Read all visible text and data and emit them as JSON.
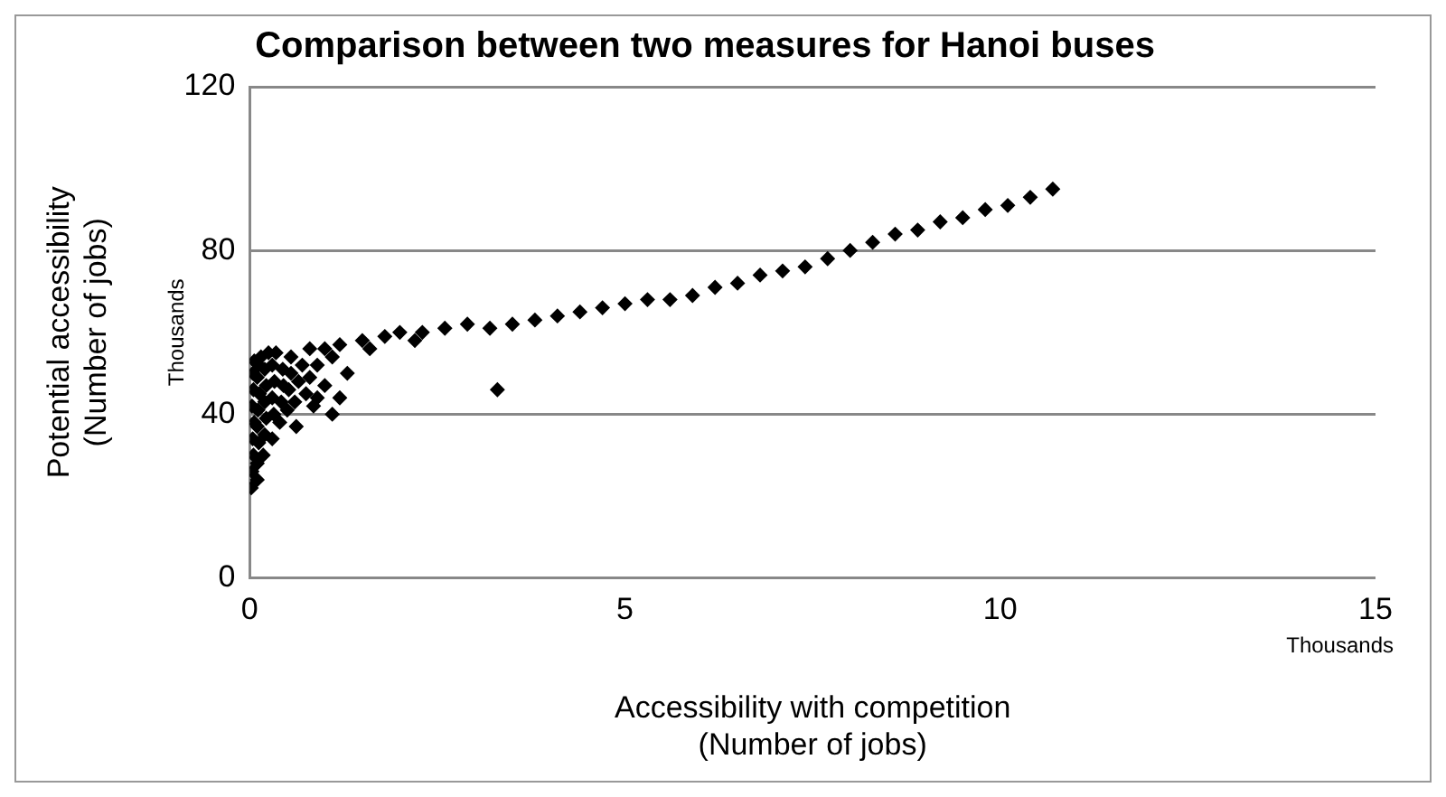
{
  "chart_data": {
    "type": "scatter",
    "title": "Comparison between two measures for Hanoi buses",
    "xlabel": "Accessibility with competition\n(Number of jobs)",
    "ylabel": "Potential accessibility\n(Number of jobs)",
    "annotations": [
      "Thousands",
      "Thousands"
    ],
    "x": [
      0.02,
      0.03,
      0.05,
      0.04,
      0.06,
      0.03,
      0.05,
      0.04,
      0.06,
      0.1,
      0.1,
      0.12,
      0.1,
      0.11,
      0.13,
      0.1,
      0.12,
      0.15,
      0.18,
      0.2,
      0.22,
      0.2,
      0.22,
      0.2,
      0.25,
      0.3,
      0.32,
      0.3,
      0.33,
      0.3,
      0.35,
      0.4,
      0.42,
      0.45,
      0.44,
      0.5,
      0.52,
      0.55,
      0.55,
      0.6,
      0.65,
      0.7,
      0.62,
      0.75,
      0.8,
      0.85,
      0.9,
      1.0,
      1.1,
      1.2,
      1.3,
      0.8,
      1.0,
      1.2,
      1.5,
      1.8,
      2.0,
      2.3,
      2.6,
      2.9,
      3.2,
      3.5,
      3.8,
      4.1,
      4.4,
      4.7,
      5.0,
      5.3,
      5.6,
      5.9,
      6.2,
      6.5,
      6.8,
      7.1,
      7.4,
      7.7,
      8.0,
      8.3,
      8.6,
      8.9,
      9.2,
      9.5,
      9.8,
      10.1,
      10.4,
      10.7,
      3.3,
      1.6,
      2.2,
      0.9,
      1.1
    ],
    "values": [
      22,
      26,
      30,
      34,
      38,
      42,
      46,
      50,
      53,
      24,
      28,
      33,
      37,
      41,
      45,
      49,
      52,
      54,
      30,
      35,
      39,
      43,
      47,
      51,
      55,
      34,
      40,
      44,
      48,
      52,
      55,
      38,
      43,
      47,
      51,
      41,
      46,
      50,
      54,
      43,
      48,
      52,
      37,
      45,
      49,
      42,
      52,
      47,
      40,
      44,
      50,
      56,
      56,
      57,
      58,
      59,
      60,
      60,
      61,
      62,
      61,
      62,
      63,
      64,
      65,
      66,
      67,
      68,
      68,
      69,
      71,
      72,
      74,
      75,
      76,
      78,
      80,
      82,
      84,
      85,
      87,
      88,
      90,
      91,
      93,
      95,
      46,
      56,
      58,
      44,
      54
    ],
    "color": "#000000",
    "marker": "diamond",
    "grid": "y",
    "legend": false,
    "xlim": [
      0,
      15
    ],
    "xticks": [
      0,
      5,
      10,
      15
    ],
    "ylim": [
      0,
      120
    ],
    "yticks": [
      0,
      40,
      80,
      120
    ]
  }
}
